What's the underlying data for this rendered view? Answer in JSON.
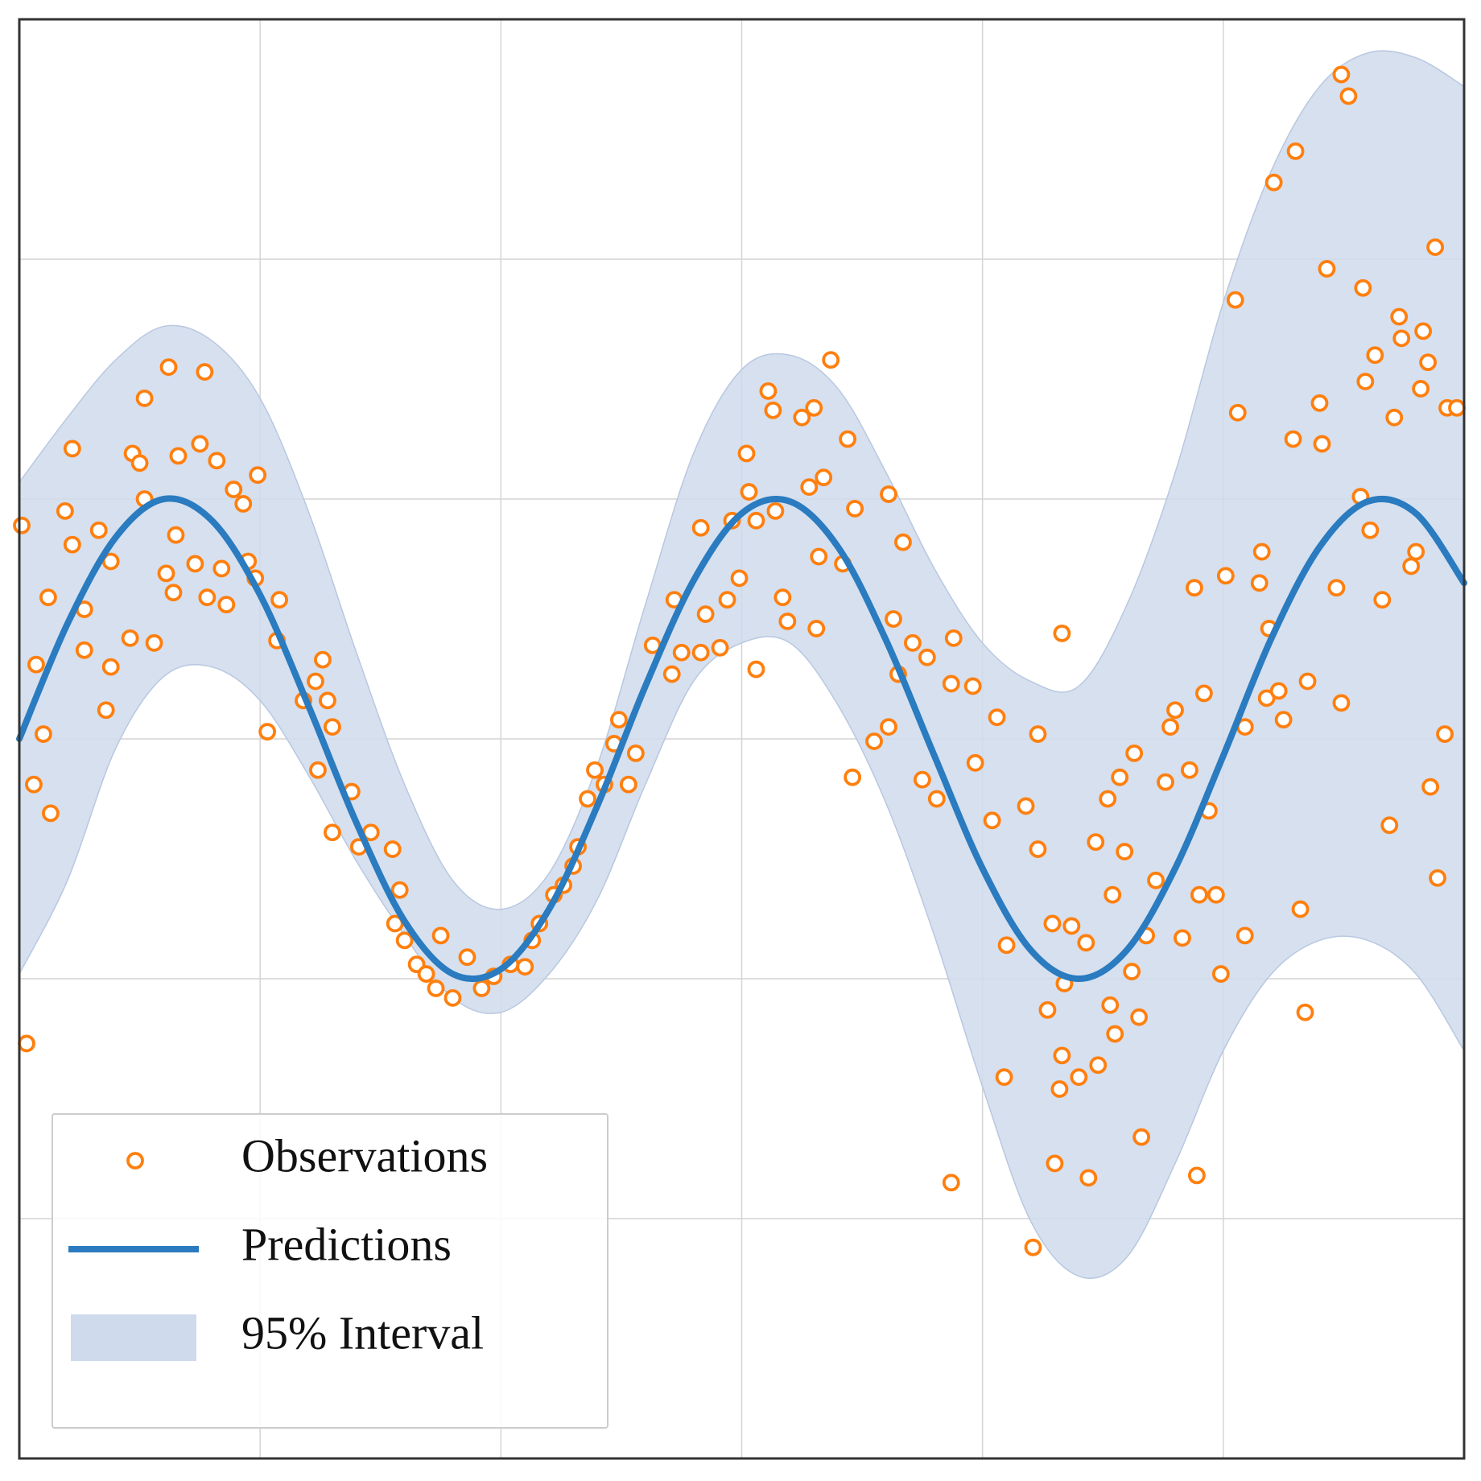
{
  "chart_data": {
    "type": "line",
    "xlim": [
      0,
      6
    ],
    "ylim": [
      0,
      6
    ],
    "xticks": [
      1,
      2,
      3,
      4,
      5
    ],
    "yticks": [
      1,
      2,
      3,
      4,
      5
    ],
    "grid": true,
    "legend": "lower left",
    "x": [
      0,
      0.2,
      0.4,
      0.6,
      0.8,
      1.0,
      1.2,
      1.4,
      1.6,
      1.8,
      2.0,
      2.2,
      2.4,
      2.6,
      2.8,
      3.0,
      3.2,
      3.4,
      3.6,
      3.8,
      4.0,
      4.2,
      4.4,
      4.6,
      4.8,
      5.0,
      5.2,
      5.4,
      5.6,
      5.8,
      6.0
    ],
    "series": [
      {
        "name": "Observations",
        "type": "scatter",
        "color": "#ff7f0e",
        "x": [
          0.01,
          0.03,
          0.1,
          0.13,
          0.06,
          0.07,
          0.12,
          0.19,
          0.22,
          0.22,
          0.27,
          0.27,
          0.33,
          0.36,
          0.38,
          0.38,
          0.46,
          0.47,
          0.5,
          0.52,
          0.52,
          0.56,
          0.61,
          0.62,
          0.64,
          0.65,
          0.66,
          0.73,
          0.75,
          0.77,
          0.78,
          0.82,
          0.84,
          0.86,
          0.89,
          0.93,
          0.95,
          0.99,
          0.98,
          1.03,
          1.07,
          1.08,
          1.18,
          1.23,
          1.26,
          1.28,
          1.3,
          1.24,
          1.3,
          1.38,
          1.41,
          1.46,
          1.55,
          1.58,
          1.56,
          1.6,
          1.65,
          1.69,
          1.73,
          1.75,
          1.8,
          1.86,
          1.92,
          1.97,
          2.04,
          2.1,
          2.13,
          2.16,
          2.22,
          2.26,
          2.3,
          2.32,
          2.36,
          2.39,
          2.43,
          2.47,
          2.49,
          2.53,
          2.56,
          2.63,
          2.71,
          2.72,
          2.75,
          2.83,
          2.83,
          2.85,
          2.91,
          2.94,
          2.96,
          2.99,
          3.02,
          3.03,
          3.06,
          3.06,
          3.11,
          3.13,
          3.14,
          3.17,
          3.19,
          3.25,
          3.28,
          3.3,
          3.31,
          3.32,
          3.34,
          3.37,
          3.42,
          3.44,
          3.46,
          3.47,
          3.55,
          3.61,
          3.61,
          3.63,
          3.67,
          3.65,
          3.71,
          3.75,
          3.77,
          3.81,
          3.87,
          3.88,
          3.87,
          3.96,
          3.97,
          4.04,
          4.06,
          4.09,
          4.1,
          4.18,
          4.21,
          4.23,
          4.23,
          4.27,
          4.29,
          4.3,
          4.32,
          4.33,
          4.34,
          4.33,
          4.37,
          4.4,
          4.43,
          4.44,
          4.47,
          4.48,
          4.52,
          4.53,
          4.54,
          4.55,
          4.57,
          4.59,
          4.62,
          4.63,
          4.65,
          4.66,
          4.68,
          4.72,
          4.76,
          4.78,
          4.8,
          4.83,
          4.86,
          4.88,
          4.89,
          4.9,
          4.92,
          4.94,
          4.97,
          4.99,
          5.01,
          5.05,
          5.06,
          5.09,
          5.09,
          5.15,
          5.16,
          5.18,
          5.19,
          5.21,
          5.23,
          5.25,
          5.29,
          5.3,
          5.32,
          5.34,
          5.35,
          5.4,
          5.41,
          5.43,
          5.47,
          5.49,
          5.49,
          5.52,
          5.57,
          5.58,
          5.59,
          5.61,
          5.63,
          5.66,
          5.69,
          5.71,
          5.73,
          5.74,
          5.78,
          5.8,
          5.82,
          5.83,
          5.85,
          5.86,
          5.88,
          5.89,
          5.92,
          5.93,
          5.97
        ],
        "y": [
          3.89,
          1.73,
          3.02,
          2.69,
          2.81,
          3.31,
          3.59,
          3.95,
          4.21,
          3.81,
          3.37,
          3.54,
          3.87,
          3.12,
          3.3,
          3.74,
          3.42,
          4.19,
          4.15,
          4.42,
          4.0,
          3.4,
          3.69,
          4.55,
          3.61,
          3.85,
          4.18,
          3.73,
          4.23,
          4.53,
          3.59,
          4.16,
          3.71,
          3.56,
          4.04,
          3.98,
          3.74,
          4.1,
          3.67,
          3.03,
          3.41,
          3.58,
          3.16,
          3.24,
          3.33,
          3.16,
          3.05,
          2.87,
          2.61,
          2.78,
          2.55,
          2.61,
          2.54,
          2.37,
          2.23,
          2.16,
          2.06,
          2.02,
          1.96,
          2.18,
          1.92,
          2.09,
          1.96,
          2.01,
          2.06,
          2.05,
          2.16,
          2.23,
          2.35,
          2.39,
          2.47,
          2.55,
          2.75,
          2.87,
          2.81,
          2.98,
          3.08,
          2.81,
          2.94,
          3.39,
          3.27,
          3.58,
          3.36,
          3.88,
          3.36,
          3.52,
          3.38,
          3.58,
          3.91,
          3.67,
          4.19,
          4.03,
          3.29,
          3.91,
          4.45,
          4.37,
          3.95,
          3.59,
          3.49,
          4.34,
          4.05,
          4.38,
          3.46,
          3.76,
          4.09,
          4.58,
          3.73,
          4.25,
          2.84,
          3.96,
          2.99,
          4.02,
          3.05,
          3.5,
          3.82,
          3.27,
          3.4,
          2.83,
          3.34,
          2.75,
          3.23,
          3.42,
          1.15,
          3.22,
          2.9,
          2.66,
          3.09,
          1.59,
          2.14,
          2.72,
          0.88,
          3.02,
          2.54,
          1.87,
          2.23,
          1.23,
          1.54,
          3.44,
          1.98,
          1.68,
          2.22,
          1.59,
          2.15,
          1.17,
          2.57,
          1.64,
          2.75,
          1.89,
          2.35,
          1.77,
          2.84,
          2.53,
          2.03,
          2.94,
          1.84,
          1.34,
          2.18,
          2.41,
          2.82,
          3.05,
          3.12,
          2.17,
          2.87,
          3.63,
          1.18,
          2.35,
          3.19,
          2.7,
          2.35,
          2.02,
          3.68,
          4.83,
          4.36,
          2.18,
          3.05,
          3.65,
          3.78,
          3.17,
          3.46,
          5.32,
          3.2,
          3.08,
          4.25,
          5.45,
          2.29,
          1.86,
          3.24,
          4.4,
          4.23,
          4.96,
          3.63,
          3.15,
          5.77,
          5.68,
          4.01,
          4.88,
          4.49,
          3.87,
          4.6,
          3.58,
          2.64,
          4.34,
          4.76,
          4.67,
          3.72,
          3.78,
          4.46,
          4.7,
          4.57,
          2.8,
          5.05,
          2.42,
          3.02,
          4.38,
          4.38
        ]
      },
      {
        "name": "Predictions",
        "type": "line",
        "color": "#2a7bbf",
        "values": [
          3.0,
          3.48,
          3.84,
          4.0,
          3.91,
          3.6,
          3.14,
          2.65,
          2.24,
          2.02,
          2.04,
          2.29,
          2.72,
          3.22,
          3.66,
          3.94,
          3.99,
          3.8,
          3.41,
          2.93,
          2.46,
          2.12,
          2.0,
          2.12,
          2.46,
          2.93,
          3.42,
          3.8,
          3.99,
          3.94,
          3.65
        ]
      },
      {
        "name": "95% Interval",
        "type": "band",
        "color": "#cfdbec",
        "upper": [
          4.07,
          4.34,
          4.58,
          4.72,
          4.66,
          4.42,
          3.95,
          3.36,
          2.81,
          2.41,
          2.29,
          2.44,
          2.89,
          3.56,
          4.19,
          4.54,
          4.6,
          4.46,
          4.11,
          3.71,
          3.4,
          3.24,
          3.22,
          3.56,
          4.11,
          4.82,
          5.37,
          5.72,
          5.86,
          5.84,
          5.72
        ],
        "lower": [
          2.02,
          2.41,
          2.96,
          3.26,
          3.3,
          3.16,
          2.85,
          2.49,
          2.18,
          1.92,
          1.86,
          2.02,
          2.33,
          2.81,
          3.24,
          3.4,
          3.4,
          3.14,
          2.73,
          2.18,
          1.55,
          0.99,
          0.76,
          0.84,
          1.23,
          1.7,
          2.02,
          2.16,
          2.16,
          2.02,
          1.7
        ]
      }
    ]
  }
}
